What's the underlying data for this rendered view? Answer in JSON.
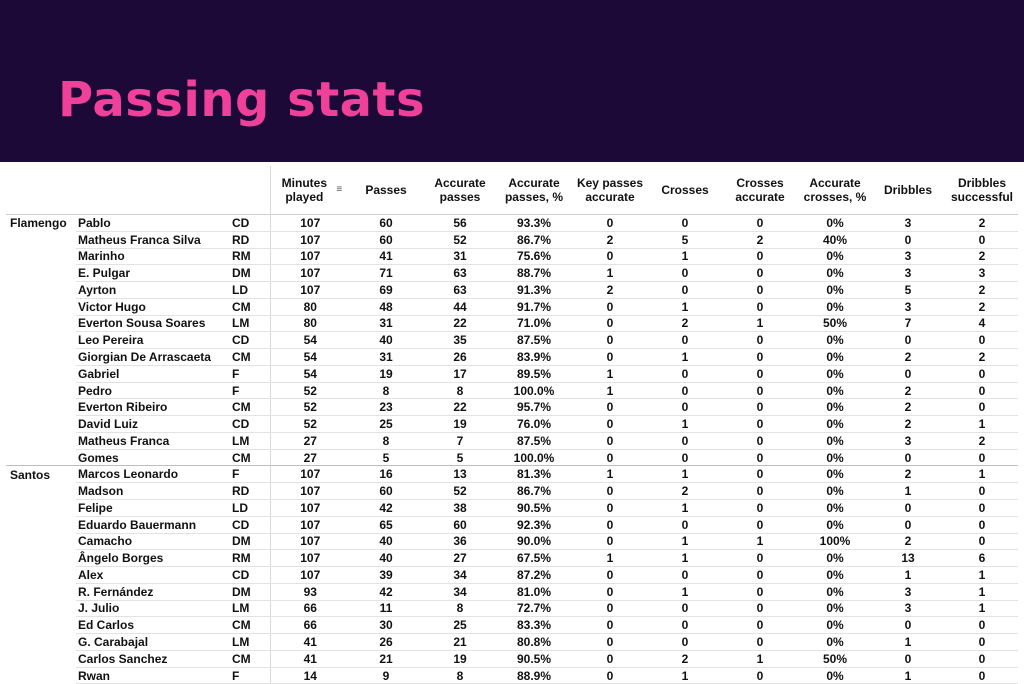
{
  "title": "Passing stats",
  "colors": {
    "banner_bg": "#1c0938",
    "title": "#f0419a"
  },
  "header": {
    "minutes": "Minutes played",
    "sort_icon": "sort-descending-icon",
    "passes": "Passes",
    "accurate_passes": "Accurate passes",
    "accurate_passes_pct": "Accurate passes, %",
    "key_passes_accurate": "Key passes accurate",
    "crosses": "Crosses",
    "crosses_accurate": "Crosses accurate",
    "accurate_crosses_pct": "Accurate crosses, %",
    "dribbles": "Dribbles",
    "dribbles_successful": "Dribbles successful"
  },
  "rows": [
    [
      "Flamengo",
      "Pablo",
      "CD",
      "107",
      "60",
      "56",
      "93.3%",
      "0",
      "0",
      "0",
      "0%",
      "3",
      "2"
    ],
    [
      "",
      "Matheus Franca Silva",
      "RD",
      "107",
      "60",
      "52",
      "86.7%",
      "2",
      "5",
      "2",
      "40%",
      "0",
      "0"
    ],
    [
      "",
      "Marinho",
      "RM",
      "107",
      "41",
      "31",
      "75.6%",
      "0",
      "1",
      "0",
      "0%",
      "3",
      "2"
    ],
    [
      "",
      "E. Pulgar",
      "DM",
      "107",
      "71",
      "63",
      "88.7%",
      "1",
      "0",
      "0",
      "0%",
      "3",
      "3"
    ],
    [
      "",
      "Ayrton",
      "LD",
      "107",
      "69",
      "63",
      "91.3%",
      "2",
      "0",
      "0",
      "0%",
      "5",
      "2"
    ],
    [
      "",
      "Victor Hugo",
      "CM",
      "80",
      "48",
      "44",
      "91.7%",
      "0",
      "1",
      "0",
      "0%",
      "3",
      "2"
    ],
    [
      "",
      "Everton Sousa Soares",
      "LM",
      "80",
      "31",
      "22",
      "71.0%",
      "0",
      "2",
      "1",
      "50%",
      "7",
      "4"
    ],
    [
      "",
      "Leo Pereira",
      "CD",
      "54",
      "40",
      "35",
      "87.5%",
      "0",
      "0",
      "0",
      "0%",
      "0",
      "0"
    ],
    [
      "",
      "Giorgian De Arrascaeta",
      "CM",
      "54",
      "31",
      "26",
      "83.9%",
      "0",
      "1",
      "0",
      "0%",
      "2",
      "2"
    ],
    [
      "",
      "Gabriel",
      "F",
      "54",
      "19",
      "17",
      "89.5%",
      "1",
      "0",
      "0",
      "0%",
      "0",
      "0"
    ],
    [
      "",
      "Pedro",
      "F",
      "52",
      "8",
      "8",
      "100.0%",
      "1",
      "0",
      "0",
      "0%",
      "2",
      "0"
    ],
    [
      "",
      "Everton Ribeiro",
      "CM",
      "52",
      "23",
      "22",
      "95.7%",
      "0",
      "0",
      "0",
      "0%",
      "2",
      "0"
    ],
    [
      "",
      "David Luiz",
      "CD",
      "52",
      "25",
      "19",
      "76.0%",
      "0",
      "1",
      "0",
      "0%",
      "2",
      "1"
    ],
    [
      "",
      "Matheus Franca",
      "LM",
      "27",
      "8",
      "7",
      "87.5%",
      "0",
      "0",
      "0",
      "0%",
      "3",
      "2"
    ],
    [
      "",
      "Gomes",
      "CM",
      "27",
      "5",
      "5",
      "100.0%",
      "0",
      "0",
      "0",
      "0%",
      "0",
      "0"
    ],
    [
      "Santos",
      "Marcos Leonardo",
      "F",
      "107",
      "16",
      "13",
      "81.3%",
      "1",
      "1",
      "0",
      "0%",
      "2",
      "1"
    ],
    [
      "",
      "Madson",
      "RD",
      "107",
      "60",
      "52",
      "86.7%",
      "0",
      "2",
      "0",
      "0%",
      "1",
      "0"
    ],
    [
      "",
      "Felipe",
      "LD",
      "107",
      "42",
      "38",
      "90.5%",
      "0",
      "1",
      "0",
      "0%",
      "0",
      "0"
    ],
    [
      "",
      "Eduardo Bauermann",
      "CD",
      "107",
      "65",
      "60",
      "92.3%",
      "0",
      "0",
      "0",
      "0%",
      "0",
      "0"
    ],
    [
      "",
      "Camacho",
      "DM",
      "107",
      "40",
      "36",
      "90.0%",
      "0",
      "1",
      "1",
      "100%",
      "2",
      "0"
    ],
    [
      "",
      "Ângelo Borges",
      "RM",
      "107",
      "40",
      "27",
      "67.5%",
      "1",
      "1",
      "0",
      "0%",
      "13",
      "6"
    ],
    [
      "",
      "Alex",
      "CD",
      "107",
      "39",
      "34",
      "87.2%",
      "0",
      "0",
      "0",
      "0%",
      "1",
      "1"
    ],
    [
      "",
      "R. Fernández",
      "DM",
      "93",
      "42",
      "34",
      "81.0%",
      "0",
      "1",
      "0",
      "0%",
      "3",
      "1"
    ],
    [
      "",
      "J. Julio",
      "LM",
      "66",
      "11",
      "8",
      "72.7%",
      "0",
      "0",
      "0",
      "0%",
      "3",
      "1"
    ],
    [
      "",
      "Ed Carlos",
      "CM",
      "66",
      "30",
      "25",
      "83.3%",
      "0",
      "0",
      "0",
      "0%",
      "0",
      "0"
    ],
    [
      "",
      "G. Carabajal",
      "LM",
      "41",
      "26",
      "21",
      "80.8%",
      "0",
      "0",
      "0",
      "0%",
      "1",
      "0"
    ],
    [
      "",
      "Carlos Sanchez",
      "CM",
      "41",
      "21",
      "19",
      "90.5%",
      "0",
      "2",
      "1",
      "50%",
      "0",
      "0"
    ],
    [
      "",
      "Rwan",
      "F",
      "14",
      "9",
      "8",
      "88.9%",
      "0",
      "1",
      "0",
      "0%",
      "1",
      "0"
    ]
  ]
}
